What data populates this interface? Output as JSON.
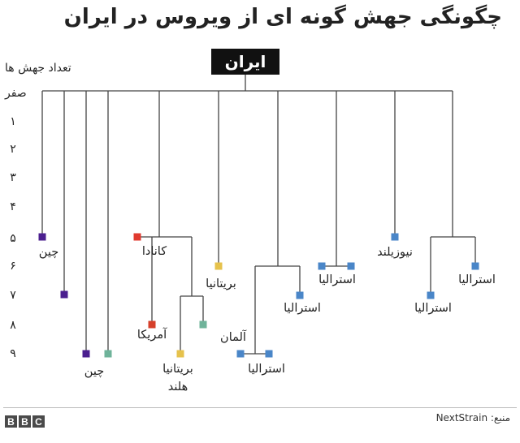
{
  "title": "چگونگی جهش گونه ای از ویروس در ایران",
  "axis": {
    "title": "تعداد جهش ها",
    "ticks": [
      "صفر",
      "۱",
      "۲",
      "۳",
      "۴",
      "۵",
      "۶",
      "۷",
      "۸",
      "۹"
    ]
  },
  "root": {
    "label": "ایران"
  },
  "colors": {
    "line": "#444444",
    "china": "#4b1f8f",
    "canada": "#e03a2f",
    "usa": "#d6402b",
    "britain": "#e6c24c",
    "teal": "#6fb39a",
    "australia": "#4a86c8",
    "germany": "#4a86c8",
    "new_zealand": "#4a86c8",
    "netherlands": "#6fb39a"
  },
  "labels": {
    "china_a": "چین",
    "china_b": "چین",
    "canada": "کانادا",
    "usa": "آمریکا",
    "britain_netherlands_line1": "بریتانیا",
    "britain_netherlands_line2": "هلند",
    "britain": "بریتانیا",
    "germany": "آلمان",
    "australia_a": "استرالیا",
    "australia_b": "استرالیا",
    "australia_c": "استرالیا",
    "new_zealand": "نیوزیلند",
    "australia_d": "استرالیا",
    "australia_e": "استرالیا"
  },
  "footer": {
    "brand": [
      "B",
      "B",
      "C"
    ],
    "source": "منبع: NextStrain"
  }
}
